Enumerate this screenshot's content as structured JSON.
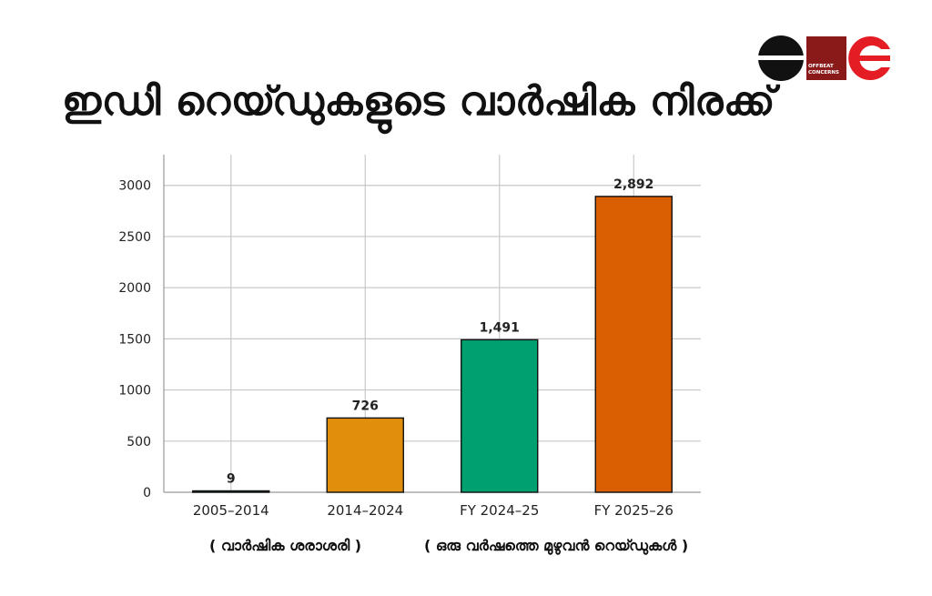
{
  "title": "ഇഡി റെയ്ഡുകളുടെ വാർഷിക നിരക്ക്",
  "logo": {
    "small_text_line1": "OFFBEAT",
    "small_text_line2": "CONCERNS"
  },
  "notes": {
    "left": "( വാർഷിക ശരാശരി )",
    "right": "( ഒരു വർഷത്തെ മുഴുവൻ റെയ്ഡുകൾ )"
  },
  "chart_data": {
    "type": "bar",
    "categories": [
      "2005–2014",
      "2014–2024",
      "FY 2024–25",
      "FY 2025–26"
    ],
    "values": [
      9,
      726,
      1491,
      2892
    ],
    "data_labels": [
      "9",
      "726",
      "1,491",
      "2,892"
    ],
    "colors": [
      "#0d6e6e",
      "#e08e0b",
      "#00a070",
      "#d95f02"
    ],
    "ylim": [
      0,
      3300
    ],
    "yticks": [
      0,
      500,
      1000,
      1500,
      2000,
      2500,
      3000
    ],
    "grid": true,
    "title": "",
    "xlabel": "",
    "ylabel": ""
  }
}
